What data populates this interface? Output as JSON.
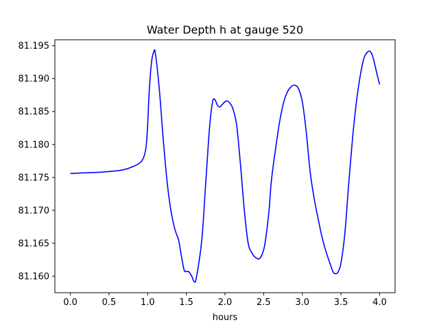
{
  "chart_data": {
    "type": "line",
    "title": "Water Depth h at gauge 520",
    "xlabel": "hours",
    "ylabel": "",
    "xlim": [
      -0.2,
      4.2
    ],
    "ylim": [
      81.1575,
      81.1959
    ],
    "xticks": [
      0.0,
      0.5,
      1.0,
      1.5,
      2.0,
      2.5,
      3.0,
      3.5,
      4.0
    ],
    "xtick_labels": [
      "0.0",
      "0.5",
      "1.0",
      "1.5",
      "2.0",
      "2.5",
      "3.0",
      "3.5",
      "4.0"
    ],
    "yticks": [
      81.16,
      81.165,
      81.17,
      81.175,
      81.18,
      81.185,
      81.19,
      81.195
    ],
    "ytick_labels": [
      "81.160",
      "81.165",
      "81.170",
      "81.175",
      "81.180",
      "81.185",
      "81.190",
      "81.195"
    ],
    "grid": false,
    "legend": "none",
    "series": [
      {
        "color": "#0000ff",
        "x": [
          0.0,
          0.2,
          0.4,
          0.6,
          0.7,
          0.8,
          0.9,
          0.95,
          0.98,
          1.0,
          1.02,
          1.05,
          1.08,
          1.1,
          1.15,
          1.2,
          1.25,
          1.3,
          1.35,
          1.4,
          1.43,
          1.47,
          1.5,
          1.53,
          1.57,
          1.6,
          1.63,
          1.7,
          1.75,
          1.8,
          1.84,
          1.87,
          1.9,
          1.93,
          1.96,
          2.0,
          2.03,
          2.06,
          2.1,
          2.15,
          2.2,
          2.25,
          2.3,
          2.35,
          2.4,
          2.45,
          2.5,
          2.53,
          2.57,
          2.6,
          2.65,
          2.7,
          2.75,
          2.8,
          2.85,
          2.9,
          2.95,
          3.0,
          3.05,
          3.1,
          3.15,
          3.2,
          3.25,
          3.3,
          3.35,
          3.4,
          3.43,
          3.46,
          3.5,
          3.55,
          3.6,
          3.65,
          3.7,
          3.75,
          3.8,
          3.85,
          3.88,
          3.91,
          3.94,
          3.97,
          4.0
        ],
        "y": [
          81.1756,
          81.1757,
          81.1758,
          81.176,
          81.1762,
          81.1766,
          81.1772,
          81.1781,
          81.1797,
          81.183,
          81.188,
          81.1925,
          81.1941,
          81.1938,
          81.1885,
          81.181,
          81.1745,
          81.17,
          81.1672,
          81.1655,
          81.1635,
          81.161,
          81.1607,
          81.1607,
          81.16,
          81.1592,
          81.1598,
          81.1655,
          81.174,
          81.1825,
          81.1865,
          81.1868,
          81.186,
          81.1857,
          81.186,
          81.1865,
          81.1866,
          81.1863,
          81.1855,
          81.183,
          81.177,
          81.17,
          81.165,
          81.1635,
          81.1628,
          81.1627,
          81.164,
          81.166,
          81.17,
          81.1745,
          81.179,
          81.183,
          81.186,
          81.1878,
          81.1887,
          81.189,
          81.1885,
          81.1865,
          81.182,
          81.176,
          81.172,
          81.169,
          81.1662,
          81.164,
          81.1622,
          81.1606,
          81.1604,
          81.1606,
          81.162,
          81.1665,
          81.174,
          81.181,
          81.1865,
          81.1905,
          81.1932,
          81.1941,
          81.1941,
          81.1934,
          81.192,
          81.1905,
          81.1891
        ]
      }
    ]
  }
}
